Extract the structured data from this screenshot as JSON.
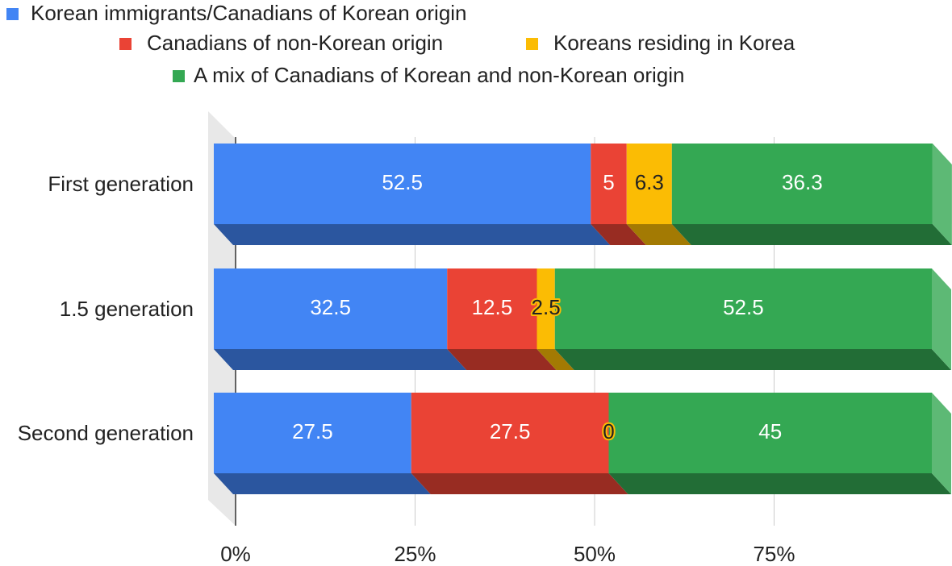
{
  "chart_data": {
    "type": "bar",
    "orientation": "horizontal",
    "stacked": true,
    "categories": [
      "First generation",
      "1.5 generation",
      "Second generation"
    ],
    "series": [
      {
        "name": "Korean immigrants/Canadians of Korean origin",
        "color": "#4285f4",
        "values": [
          52.5,
          32.5,
          27.5
        ]
      },
      {
        "name": "Canadians of non-Korean origin",
        "color": "#ea4335",
        "values": [
          5,
          12.5,
          27.5
        ]
      },
      {
        "name": "Koreans residing in Korea",
        "color": "#fbbc04",
        "values": [
          6.3,
          2.5,
          0
        ]
      },
      {
        "name": "A mix of Canadians of Korean and non-Korean origin",
        "color": "#34a853",
        "values": [
          36.3,
          52.5,
          45
        ]
      }
    ],
    "xlim": [
      0,
      100
    ],
    "xticks": [
      {
        "value": 0,
        "label": "0%"
      },
      {
        "value": 25,
        "label": "25%"
      },
      {
        "value": 50,
        "label": "50%"
      },
      {
        "value": 75,
        "label": "75%"
      }
    ],
    "grid": true,
    "legend": "top"
  }
}
